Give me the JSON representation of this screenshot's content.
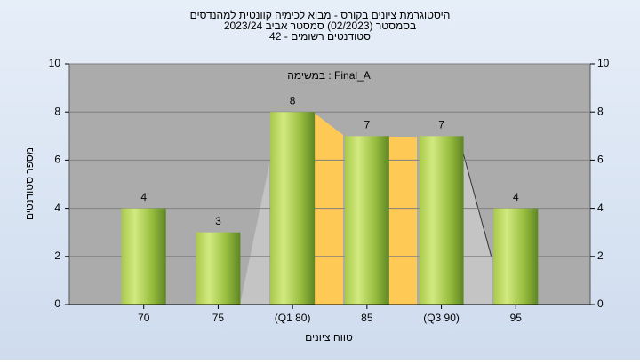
{
  "chart_data": {
    "type": "bar",
    "title": "היסטוגרמת ציונים בקורס - מבוא לכימיה קוונטית למהנדסים",
    "subtitle": "בסמסטר  (02/2023)  סמסטר אביב 2023/24",
    "subtitle2": "סטודנטים רשומים - 42",
    "annotation": "במשימה : Final_A",
    "x_label": "טווח ציונים",
    "y_label": "מספר סטודנטים",
    "categories": [
      "70",
      "75",
      "(Q1 80)",
      "85",
      "(Q3 90)",
      "95"
    ],
    "values": [
      4,
      3,
      8,
      7,
      7,
      4
    ],
    "ylim": [
      0,
      10
    ],
    "yticks": [
      0,
      2,
      4,
      6,
      8,
      10
    ],
    "y2lim": [
      0,
      10
    ],
    "y2ticks": [
      0,
      2,
      4,
      6,
      8,
      10
    ],
    "grid": true
  }
}
